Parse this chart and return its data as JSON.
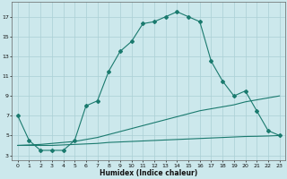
{
  "xlabel": "Humidex (Indice chaleur)",
  "bg_color": "#cce8ec",
  "grid_color": "#aacfd4",
  "line_color": "#1a7a6e",
  "x": [
    0,
    1,
    2,
    3,
    4,
    5,
    6,
    7,
    8,
    9,
    10,
    11,
    12,
    13,
    14,
    15,
    16,
    17,
    18,
    19,
    20,
    21,
    22,
    23
  ],
  "y_main": [
    7.0,
    4.5,
    3.5,
    3.5,
    3.5,
    4.5,
    8.0,
    8.5,
    11.5,
    13.5,
    14.5,
    16.3,
    16.5,
    17.0,
    17.5,
    17.0,
    16.5,
    12.5,
    10.5,
    9.0,
    9.5,
    7.5,
    5.5,
    5.0
  ],
  "y_mid": [
    4.0,
    4.05,
    4.1,
    4.2,
    4.3,
    4.4,
    4.6,
    4.8,
    5.1,
    5.4,
    5.7,
    6.0,
    6.3,
    6.6,
    6.9,
    7.2,
    7.5,
    7.7,
    7.9,
    8.1,
    8.4,
    8.6,
    8.8,
    9.0
  ],
  "y_low": [
    4.0,
    4.0,
    4.0,
    4.0,
    4.05,
    4.1,
    4.15,
    4.2,
    4.3,
    4.35,
    4.4,
    4.45,
    4.5,
    4.55,
    4.6,
    4.65,
    4.7,
    4.75,
    4.8,
    4.85,
    4.9,
    4.92,
    4.95,
    5.0
  ],
  "xlim": [
    -0.5,
    23.5
  ],
  "ylim": [
    2.5,
    18.5
  ],
  "yticks": [
    3,
    5,
    7,
    9,
    11,
    13,
    15,
    17
  ],
  "xticks": [
    0,
    1,
    2,
    3,
    4,
    5,
    6,
    7,
    8,
    9,
    10,
    11,
    12,
    13,
    14,
    15,
    16,
    17,
    18,
    19,
    20,
    21,
    22,
    23
  ]
}
